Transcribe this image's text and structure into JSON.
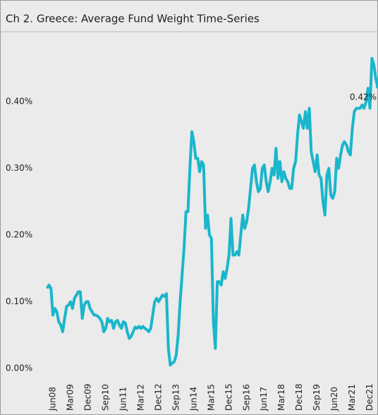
{
  "chart_data": {
    "type": "line",
    "title": "Ch 2. Greece:  Average Fund Weight Time-Series",
    "categories": [
      null,
      null,
      null,
      "Jun08",
      null,
      null,
      null,
      null,
      null,
      null,
      null,
      null,
      "Mar09",
      null,
      null,
      null,
      null,
      null,
      null,
      null,
      null,
      "Dec09",
      null,
      null,
      null,
      null,
      null,
      null,
      null,
      null,
      "Sep10",
      null,
      null,
      null,
      null,
      null,
      null,
      null,
      null,
      "Jun11",
      null,
      null,
      null,
      null,
      null,
      null,
      null,
      null,
      "Mar12",
      null,
      null,
      null,
      null,
      null,
      null,
      null,
      null,
      "Dec12",
      null,
      null,
      null,
      null,
      null,
      null,
      null,
      null,
      "Sep13",
      null,
      null,
      null,
      null,
      null,
      null,
      null,
      null,
      "Jun14",
      null,
      null,
      null,
      null,
      null,
      null,
      null,
      null,
      "Mar15",
      null,
      null,
      null,
      null,
      null,
      null,
      null,
      null,
      "Dec15",
      null,
      null,
      null,
      null,
      null,
      null,
      null,
      null,
      "Sep16",
      null,
      null,
      null,
      null,
      null,
      null,
      null,
      null,
      "Jun17",
      null,
      null,
      null,
      null,
      null,
      null,
      null,
      null,
      "Mar18",
      null,
      null,
      null,
      null,
      null,
      null,
      null,
      null,
      "Dec18",
      null,
      null,
      null,
      null,
      null,
      null,
      null,
      null,
      "Sep19",
      null,
      null,
      null,
      null,
      null,
      null,
      null,
      null,
      "Jun20",
      null,
      null,
      null,
      null,
      null,
      null,
      null,
      null,
      "Mar21",
      null,
      null,
      null,
      null,
      null,
      null,
      null,
      null,
      "Dec21",
      null,
      null,
      null,
      null
    ],
    "values": [
      0.12,
      0.125,
      0.12,
      0.08,
      0.09,
      0.085,
      0.07,
      0.065,
      0.055,
      0.075,
      0.093,
      0.095,
      0.1,
      0.09,
      0.105,
      0.11,
      0.115,
      0.115,
      0.075,
      0.095,
      0.1,
      0.1,
      0.09,
      0.085,
      0.08,
      0.08,
      0.078,
      0.075,
      0.07,
      0.055,
      0.06,
      0.075,
      0.07,
      0.072,
      0.06,
      0.07,
      0.072,
      0.065,
      0.06,
      0.07,
      0.068,
      0.055,
      0.045,
      0.048,
      0.055,
      0.062,
      0.06,
      0.063,
      0.06,
      0.063,
      0.06,
      0.058,
      0.055,
      0.06,
      0.08,
      0.1,
      0.105,
      0.1,
      0.105,
      0.11,
      0.108,
      0.112,
      0.03,
      0.005,
      0.008,
      0.01,
      0.02,
      0.05,
      0.1,
      0.14,
      0.18,
      0.235,
      0.235,
      0.3,
      0.355,
      0.34,
      0.315,
      0.315,
      0.295,
      0.31,
      0.305,
      0.21,
      0.23,
      0.2,
      0.195,
      0.07,
      0.03,
      0.13,
      0.13,
      0.125,
      0.145,
      0.135,
      0.15,
      0.17,
      0.225,
      0.17,
      0.17,
      0.175,
      0.17,
      0.2,
      0.23,
      0.21,
      0.22,
      0.24,
      0.27,
      0.3,
      0.305,
      0.28,
      0.265,
      0.27,
      0.3,
      0.305,
      0.28,
      0.265,
      0.28,
      0.3,
      0.29,
      0.33,
      0.285,
      0.31,
      0.28,
      0.295,
      0.285,
      0.28,
      0.27,
      0.27,
      0.3,
      0.31,
      0.35,
      0.38,
      0.37,
      0.36,
      0.385,
      0.36,
      0.39,
      0.325,
      0.31,
      0.295,
      0.32,
      0.29,
      0.285,
      0.25,
      0.23,
      0.29,
      0.3,
      0.26,
      0.255,
      0.265,
      0.315,
      0.3,
      0.32,
      0.335,
      0.34,
      0.335,
      0.325,
      0.32,
      0.36,
      0.385,
      0.39,
      0.39,
      0.39,
      0.395,
      0.39,
      0.4,
      0.42,
      0.39,
      0.465,
      0.455,
      0.435,
      0.42
    ],
    "end_label": "0.42%",
    "color": "#1ab6cc",
    "ylim": [
      0,
      0.5
    ],
    "yticks": [
      {
        "value": 0,
        "label": "0.00%"
      },
      {
        "value": 0.1,
        "label": "0.10%"
      },
      {
        "value": 0.2,
        "label": "0.20%"
      },
      {
        "value": 0.3,
        "label": "0.30%"
      },
      {
        "value": 0.4,
        "label": "0.40%"
      }
    ],
    "grid": false
  }
}
